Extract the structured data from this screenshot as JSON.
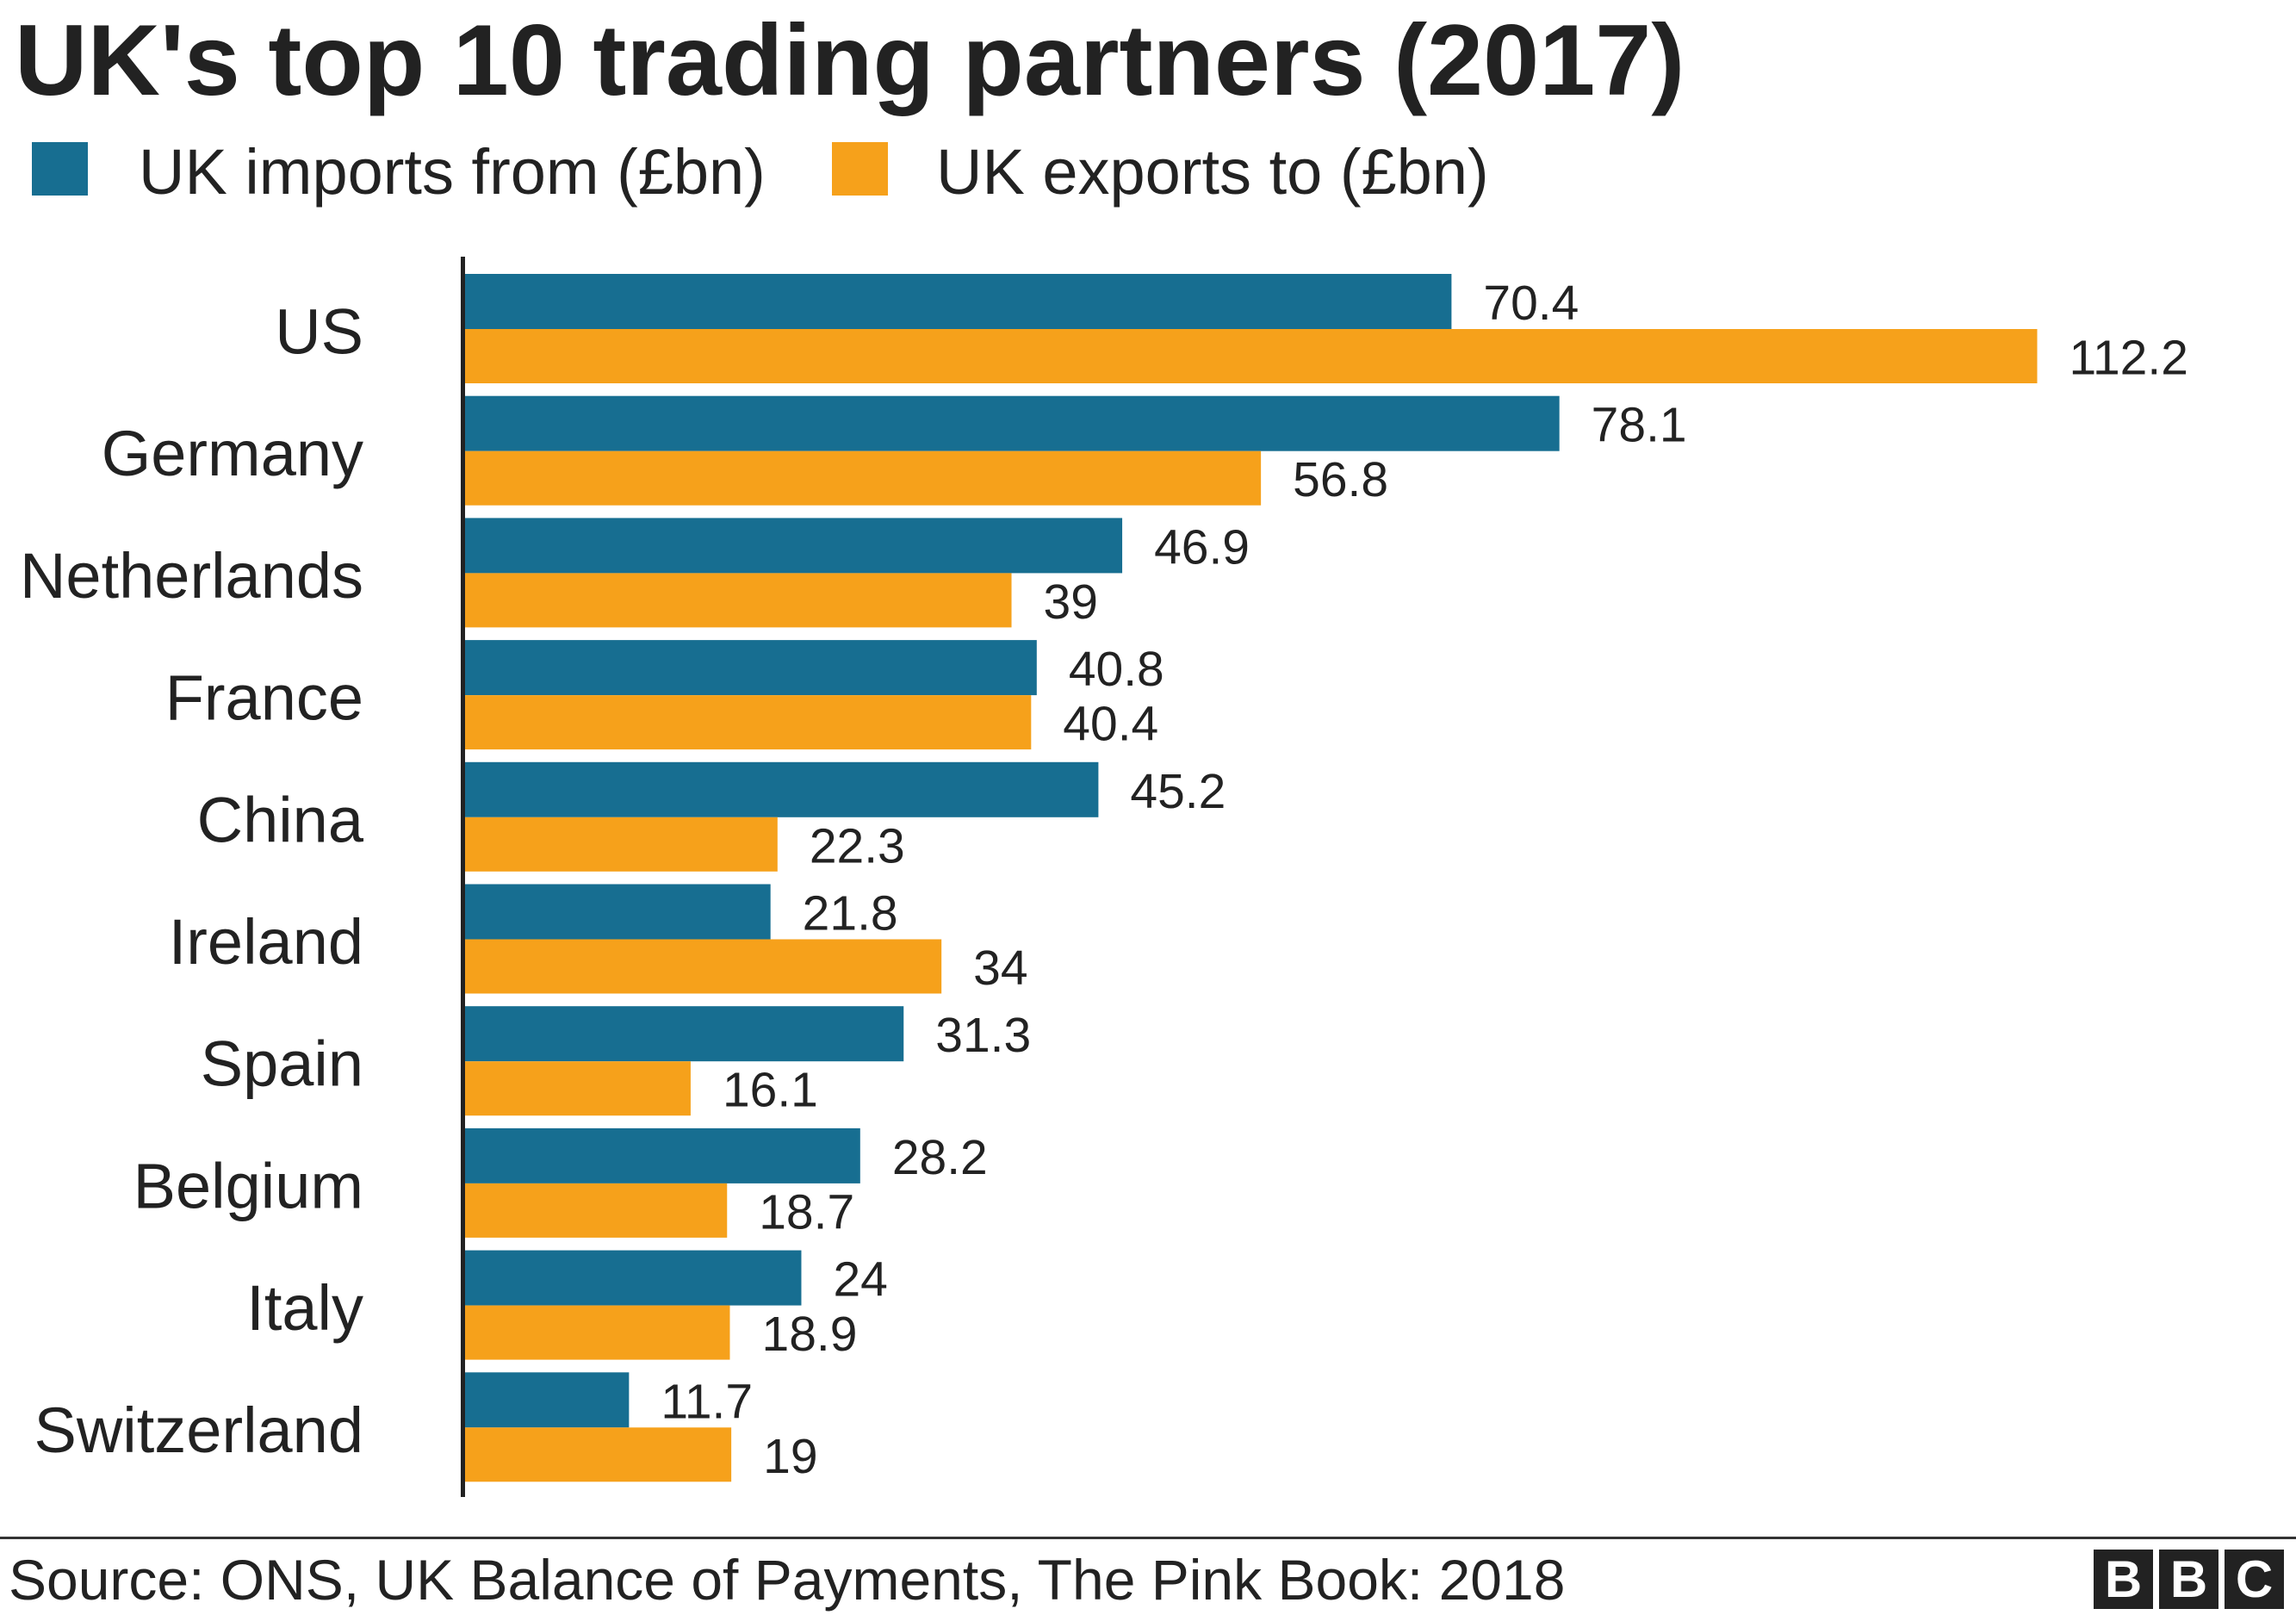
{
  "chart_data": {
    "type": "bar",
    "orientation": "horizontal",
    "title": "UK's top 10 trading partners (2017)",
    "xlabel": "",
    "ylabel": "",
    "categories": [
      "US",
      "Germany",
      "Netherlands",
      "France",
      "China",
      "Ireland",
      "Spain",
      "Belgium",
      "Italy",
      "Switzerland"
    ],
    "series": [
      {
        "name": "UK imports from (£bn)",
        "color": "#176e91",
        "values": [
          70.4,
          78.1,
          46.9,
          40.8,
          45.2,
          21.8,
          31.3,
          28.2,
          24,
          11.7
        ]
      },
      {
        "name": "UK exports to (£bn)",
        "color": "#f6a11b",
        "values": [
          112.2,
          56.8,
          39,
          40.4,
          22.3,
          34,
          16.1,
          18.7,
          18.9,
          19
        ]
      }
    ],
    "value_axis": {
      "visible": false,
      "min": 0
    },
    "data_labels": true,
    "grid": false,
    "legend_position": "top-left"
  },
  "footer": {
    "source": "Source: ONS, UK Balance of Payments, The Pink Book: 2018",
    "logo_letters": [
      "B",
      "B",
      "C"
    ]
  },
  "colors": {
    "text": "#222222",
    "background": "#ffffff"
  }
}
